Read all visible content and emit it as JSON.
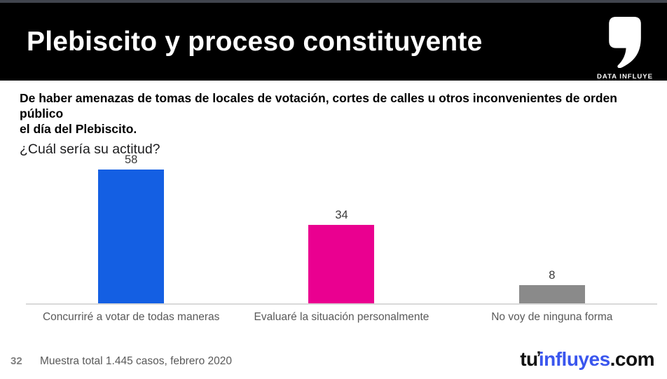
{
  "header": {
    "title": "Plebiscito y proceso constituyente",
    "brand_label": "DATA INFLUYE"
  },
  "question": {
    "bold_line1": "De haber amenazas de tomas de locales de votación, cortes de calles u otros inconvenientes de orden público",
    "bold_line2": "el día del Plebiscito.",
    "prompt": "¿Cuál sería su actitud?"
  },
  "chart_data": {
    "type": "bar",
    "title": "¿Cuál sería su actitud?",
    "categories": [
      "Concurriré a votar de todas maneras",
      "Evaluaré la situación personalmente",
      "No voy de ninguna forma"
    ],
    "values": [
      58,
      34,
      8
    ],
    "bar_colors": [
      "#145fe3",
      "#ea0090",
      "#8a8a8a"
    ],
    "unit": "percent of respondents",
    "ylim": [
      0,
      60
    ],
    "grid": false,
    "legend": false,
    "value_labels": true,
    "xlabel": "",
    "ylabel": ""
  },
  "footer": {
    "page_number": "32",
    "note": "Muestra total 1.445 casos, febrero 2020",
    "logo": {
      "part1": "tu",
      "accent": "’",
      "part2": "influyes",
      "part3": ".com"
    }
  },
  "colors": {
    "header_bg": "#000000",
    "top_strip": "#41454e",
    "bar_blue": "#145fe3",
    "bar_pink": "#ea0090",
    "bar_gray": "#8a8a8a",
    "logo_blue": "#3a56ee",
    "axis_line": "#d9d9d9",
    "muted_text": "#595959"
  }
}
